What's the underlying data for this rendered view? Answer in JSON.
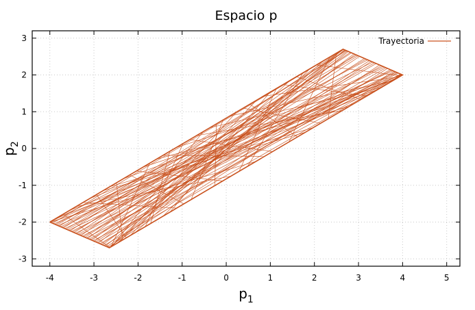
{
  "chart_data": {
    "type": "line",
    "title": "Espacio p",
    "xlabel": {
      "base": "p",
      "sub": "1"
    },
    "ylabel": {
      "base": "p",
      "sub": "2"
    },
    "xlim": [
      -4.4,
      5.3
    ],
    "ylim": [
      -3.2,
      3.2
    ],
    "xticks": [
      -4,
      -3,
      -2,
      -1,
      0,
      1,
      2,
      3,
      4,
      5
    ],
    "yticks": [
      -3,
      -2,
      -1,
      0,
      1,
      2,
      3
    ],
    "grid": true,
    "legend": {
      "position": "top-right"
    },
    "series": [
      {
        "name": "Trayectoria",
        "color": "#c9511d",
        "corners": [
          [
            -4,
            -2
          ],
          [
            -2.65,
            -2.7
          ],
          [
            4,
            2
          ],
          [
            2.65,
            2.7
          ]
        ]
      }
    ]
  }
}
